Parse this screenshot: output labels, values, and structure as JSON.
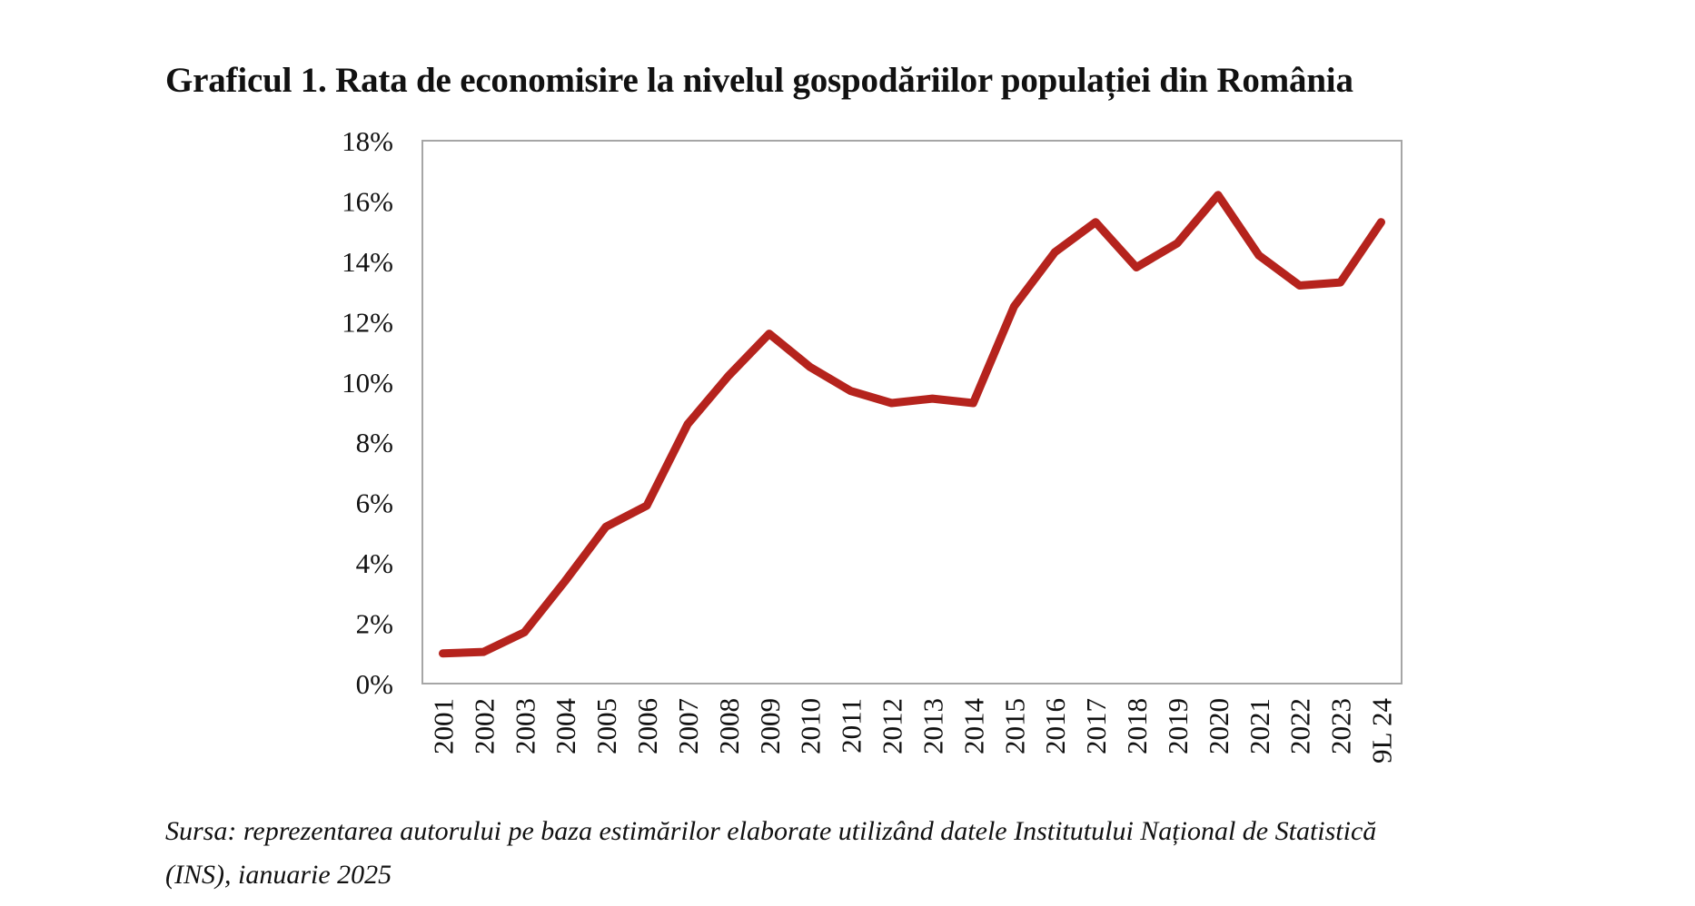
{
  "title": "Graficul 1. Rata de economisire la nivelul gospodăriilor populației din România",
  "source": {
    "line1": "Sursa: reprezentarea autorului pe baza estimărilor elaborate utilizând datele Institutului Național de Statistică",
    "line2": "(INS), ianuarie 2025"
  },
  "chart_data": {
    "type": "line",
    "title": "Graficul 1. Rata de economisire la nivelul gospodăriilor populației din România",
    "xlabel": "",
    "ylabel": "",
    "categories": [
      "2001",
      "2002",
      "2003",
      "2004",
      "2005",
      "2006",
      "2007",
      "2008",
      "2009",
      "2010",
      "2011",
      "2012",
      "2013",
      "2014",
      "2015",
      "2016",
      "2017",
      "2018",
      "2019",
      "2020",
      "2021",
      "2022",
      "2023",
      "9L 24"
    ],
    "series": [
      {
        "color": "#b5231d",
        "values": [
          1.0,
          1.05,
          1.7,
          3.4,
          5.2,
          5.9,
          8.6,
          10.2,
          11.6,
          10.5,
          9.7,
          9.3,
          9.45,
          9.3,
          12.5,
          14.3,
          15.3,
          13.8,
          14.6,
          16.2,
          14.2,
          13.2,
          13.3,
          15.3
        ]
      }
    ],
    "ylim": [
      0,
      18
    ],
    "yticks": [
      0,
      2,
      4,
      6,
      8,
      10,
      12,
      14,
      16,
      18
    ],
    "ytick_labels": [
      "0%",
      "2%",
      "4%",
      "6%",
      "8%",
      "10%",
      "12%",
      "14%",
      "16%",
      "18%"
    ],
    "grid": false,
    "legend": "none",
    "plot_border_color": "#a6a6a6"
  }
}
